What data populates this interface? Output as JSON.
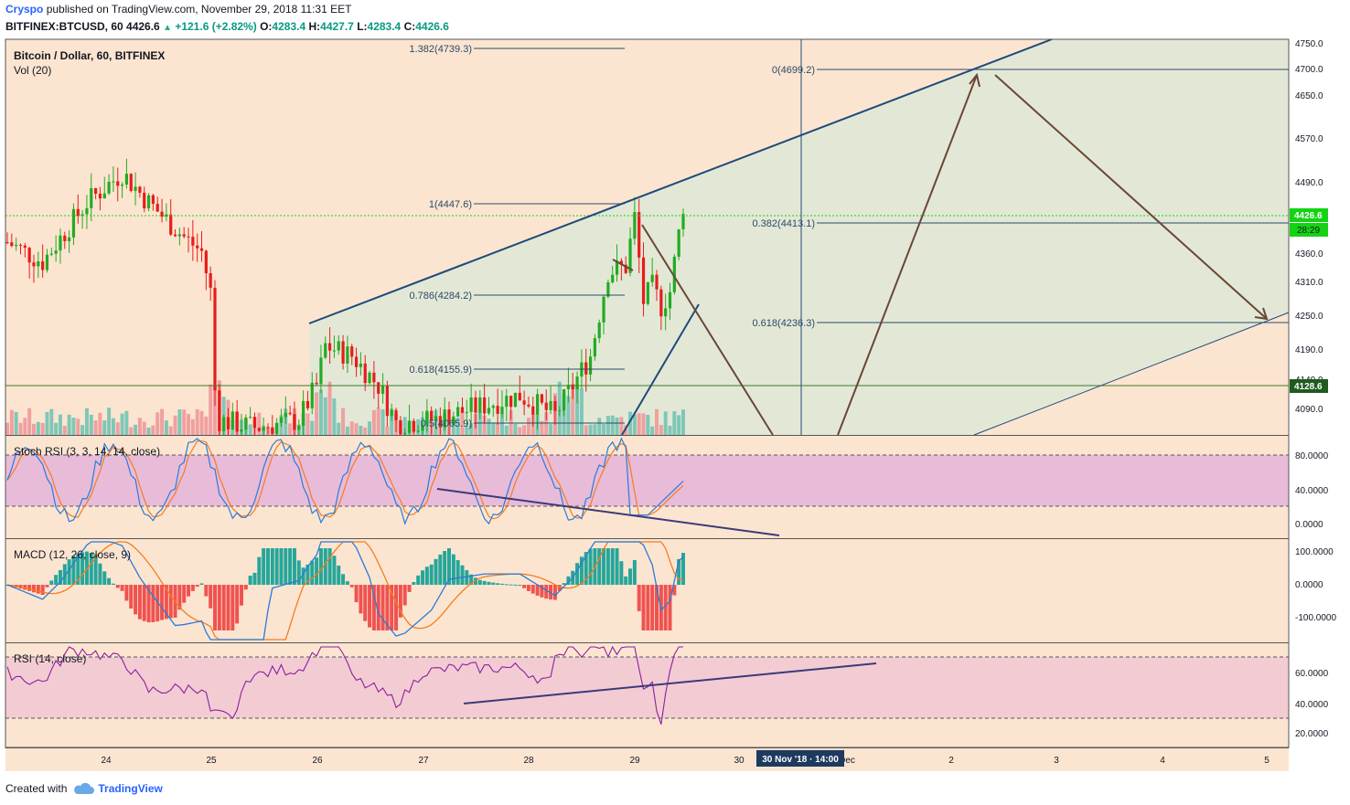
{
  "header": {
    "author": "Cryspo",
    "published": "published on TradingView.com, November 29, 2018 11:31 EET",
    "symbol": "BITFINEX:BTCUSD, 60",
    "last": "4426.6",
    "change": "+121.6 (+2.82%)",
    "o_label": "O:",
    "o": "4283.4",
    "h_label": "H:",
    "h": "4427.7",
    "l_label": "L:",
    "l": "4283.4",
    "c_label": "C:",
    "c": "4426.6"
  },
  "footer": {
    "created_with": "Created with",
    "brand": "TradingView"
  },
  "colors": {
    "bg": "#fce5d0",
    "channel_fill": "#e3e8d6",
    "up": "#22ab22",
    "down": "#e81c1c",
    "trend": "#1e4a7a",
    "arrow": "#6a4636",
    "stoch_band": "#e8bbd9",
    "rsi_band": "#f2ccd2",
    "rsi_line": "#8e1ea2",
    "macd_line": "#2b7bd8",
    "signal_line": "#f57c1f",
    "last_price": "#14d314"
  },
  "chart_data": [
    {
      "type": "candlestick",
      "title": "Bitcoin / Dollar, 60, BITFINEX",
      "volume_label": "Vol (20)",
      "y_ticks": [
        "4750.0",
        "4700.0",
        "4650.0",
        "4570.0",
        "4490.0",
        "4360.0",
        "4310.0",
        "4250.0",
        "4190.0",
        "4140.0",
        "4090.0"
      ],
      "last_price_label": "4426.6",
      "countdown_label": "28:29",
      "support_price_label": "4128.6",
      "support_price": 4128.6,
      "fibonacci_left": [
        {
          "label": "1.382(4739.3)",
          "value": 4739.3
        },
        {
          "label": "1(4447.6)",
          "value": 4447.6
        },
        {
          "label": "0.786(4284.2)",
          "value": 4284.2
        },
        {
          "label": "0.618(4155.9)",
          "value": 4155.9
        },
        {
          "label": "0.5(4065.9)",
          "value": 4065.9
        }
      ],
      "fibonacci_right": [
        {
          "label": "0(4699.2)",
          "value": 4699.2
        },
        {
          "label": "0.382(4413.1)",
          "value": 4413.1
        },
        {
          "label": "0.618(4236.3)",
          "value": 4236.3
        }
      ],
      "x_ticks": [
        "24",
        "25",
        "26",
        "27",
        "28",
        "29",
        "30",
        "Dec",
        "2",
        "3",
        "4",
        "5"
      ],
      "cursor_label": "30 Nov '18 · 14:00",
      "key_prices": {
        "max": 4525,
        "min": 3965
      }
    },
    {
      "type": "line",
      "title": "Stoch RSI (3, 3, 14, 14, close)",
      "y_ticks": [
        "80.0000",
        "40.0000",
        "0.0000"
      ],
      "band": [
        20,
        80
      ]
    },
    {
      "type": "bar",
      "title": "MACD (12, 26, close, 9)",
      "y_ticks": [
        "100.0000",
        "0.0000",
        "-100.0000"
      ]
    },
    {
      "type": "line",
      "title": "RSI (14, close)",
      "y_ticks": [
        "60.0000",
        "40.0000",
        "20.0000"
      ],
      "band": [
        30,
        70
      ]
    }
  ]
}
